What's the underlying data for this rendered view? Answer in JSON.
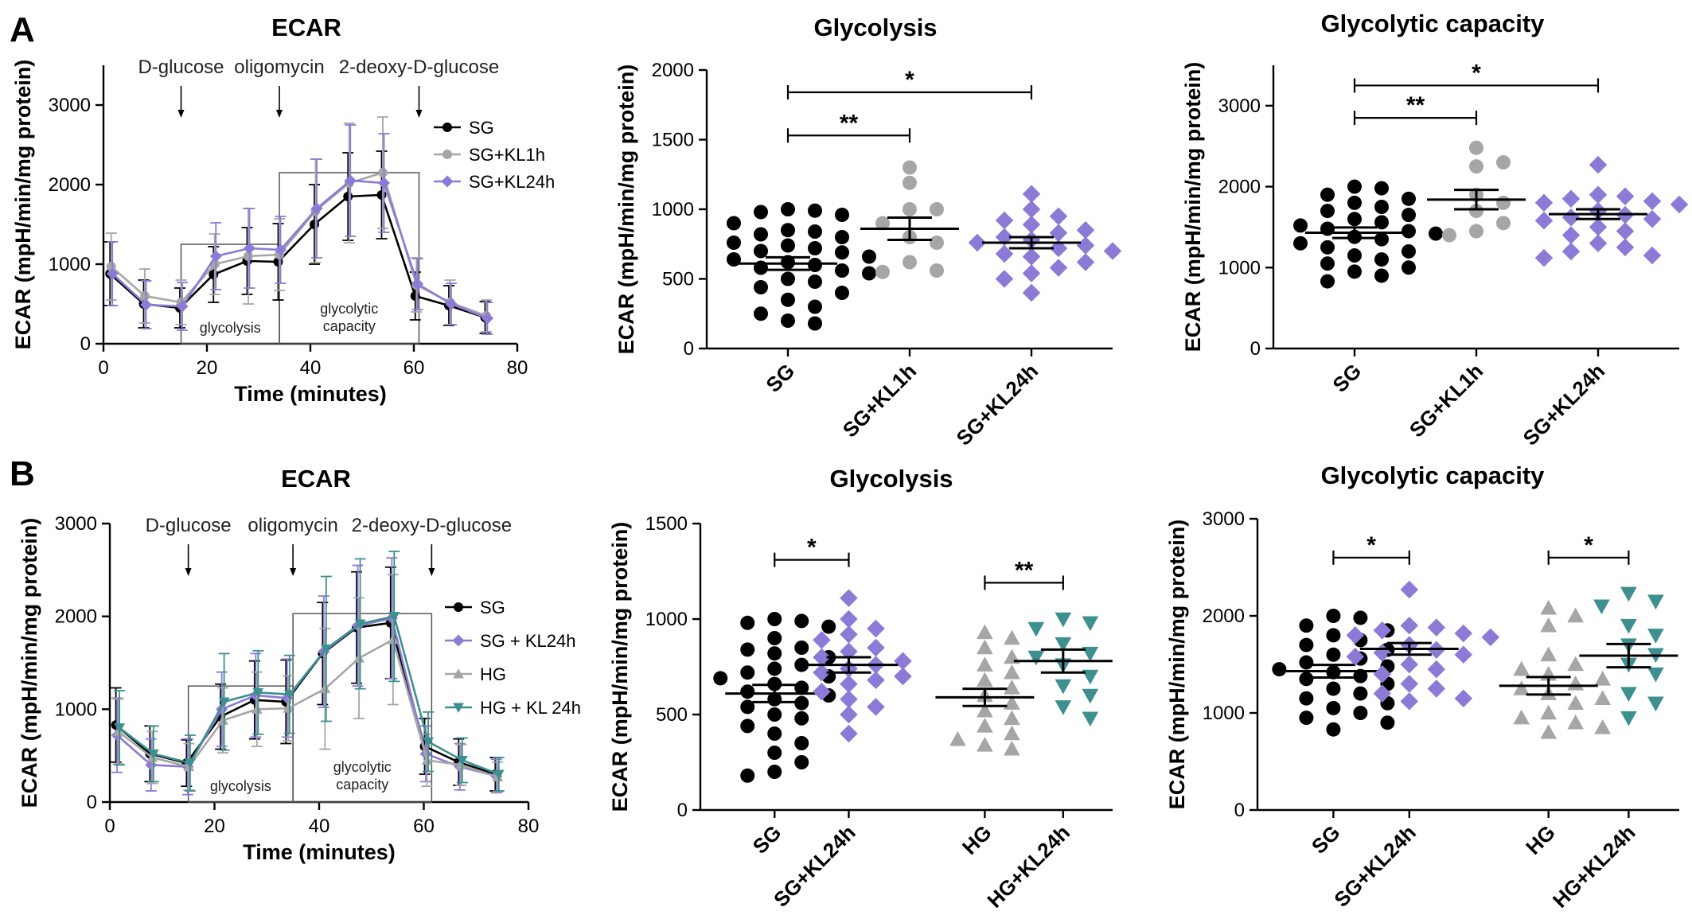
{
  "figure": {
    "panel_labels": [
      "A",
      "B"
    ]
  },
  "colors": {
    "sg": "#000000",
    "kl1h": "#a6a6a6",
    "kl24h": "#8c7ad6",
    "hg": "#a6a6a6",
    "hgkl24h": "#3d8f90",
    "box": "#555555"
  },
  "chart_data": [
    {
      "id": "A1",
      "type": "line",
      "title": "ECAR",
      "xlabel": "Time (minutes)",
      "ylabel": "ECAR (mpH/min/mg protein)",
      "xlim": [
        0,
        80
      ],
      "ylim": [
        0,
        3500
      ],
      "xticks": [
        0,
        20,
        40,
        60,
        80
      ],
      "yticks": [
        0,
        1000,
        2000,
        3000
      ],
      "x": [
        1.5,
        8,
        15,
        21.5,
        28,
        34,
        41,
        47.5,
        54,
        60.5,
        67,
        74
      ],
      "injections": [
        {
          "label": "D-glucose",
          "x": 15
        },
        {
          "label": "oligomycin",
          "x": 34
        },
        {
          "label": "2-deoxy-D-glucose",
          "x": 61
        }
      ],
      "regions": [
        {
          "label": "glycolysis",
          "x0": 15,
          "x1": 34,
          "y": 1250
        },
        {
          "label": "glycolytic capacity",
          "x0": 34,
          "x1": 61,
          "y": 2150
        }
      ],
      "series": [
        {
          "name": "SG",
          "color": "#000000",
          "marker": "circle",
          "values": [
            880,
            500,
            450,
            870,
            1040,
            1030,
            1500,
            1850,
            1870,
            600,
            480,
            330
          ],
          "errors": [
            400,
            300,
            250,
            350,
            420,
            480,
            500,
            550,
            550,
            300,
            250,
            200
          ]
        },
        {
          "name": "SG+KL1h",
          "color": "#a6a6a6",
          "marker": "circle",
          "values": [
            970,
            600,
            520,
            1000,
            1100,
            1120,
            1670,
            2020,
            2150,
            740,
            520,
            350
          ],
          "errors": [
            420,
            340,
            280,
            380,
            600,
            450,
            650,
            750,
            700,
            340,
            280,
            200
          ]
        },
        {
          "name": "SG+KL24h",
          "color": "#8c7ad6",
          "marker": "diamond",
          "values": [
            880,
            490,
            470,
            1100,
            1200,
            1180,
            1700,
            2050,
            2020,
            750,
            500,
            320
          ],
          "errors": [
            400,
            300,
            300,
            420,
            500,
            420,
            620,
            700,
            620,
            320,
            260,
            200
          ]
        }
      ]
    },
    {
      "id": "A2",
      "type": "scatter",
      "title": "Glycolysis",
      "ylabel": "ECAR (mpH/min/mg protein)",
      "ylim": [
        0,
        2000
      ],
      "yticks": [
        0,
        500,
        1000,
        1500,
        2000
      ],
      "categories": [
        "SG",
        "SG+KL1h",
        "SG+KL24h"
      ],
      "groups": [
        {
          "name": "SG",
          "color": "#000000",
          "marker": "circle",
          "mean": 610,
          "sem": 45,
          "values": [
            1000,
            990,
            980,
            960,
            900,
            850,
            840,
            820,
            800,
            760,
            740,
            720,
            700,
            690,
            660,
            640,
            620,
            600,
            580,
            560,
            540,
            500,
            480,
            440,
            400,
            350,
            300,
            250,
            200,
            180
          ]
        },
        {
          "name": "SG+KL1h",
          "color": "#a6a6a6",
          "marker": "circle",
          "mean": 860,
          "sem": 80,
          "values": [
            1300,
            1190,
            1000,
            1000,
            900,
            800,
            760,
            620,
            560,
            550
          ]
        },
        {
          "name": "SG+KL24h",
          "color": "#8c7ad6",
          "marker": "diamond",
          "mean": 760,
          "sem": 40,
          "values": [
            1110,
            1000,
            950,
            920,
            890,
            850,
            830,
            800,
            780,
            760,
            740,
            720,
            700,
            680,
            660,
            620,
            580,
            540,
            500,
            400
          ]
        }
      ],
      "comparisons": [
        {
          "from": 0,
          "to": 1,
          "y": 1530,
          "label": "**"
        },
        {
          "from": 0,
          "to": 2,
          "y": 1840,
          "label": "*"
        }
      ]
    },
    {
      "id": "A3",
      "type": "scatter",
      "title": "Glycolytic capacity",
      "ylabel": "ECAR (mpH/min/mg protein)",
      "ylim": [
        0,
        3500
      ],
      "yticks": [
        0,
        1000,
        2000,
        3000
      ],
      "categories": [
        "SG",
        "SG+KL1h",
        "SG+KL24h"
      ],
      "groups": [
        {
          "name": "SG",
          "color": "#000000",
          "marker": "circle",
          "mean": 1430,
          "sem": 65,
          "values": [
            2000,
            1980,
            1900,
            1850,
            1800,
            1750,
            1700,
            1650,
            1600,
            1560,
            1520,
            1480,
            1450,
            1420,
            1380,
            1350,
            1300,
            1250,
            1200,
            1150,
            1100,
            1050,
            1000,
            950,
            900,
            830
          ]
        },
        {
          "name": "SG+KL1h",
          "color": "#a6a6a6",
          "marker": "circle",
          "mean": 1840,
          "sem": 120,
          "values": [
            2480,
            2300,
            2250,
            1900,
            1800,
            1700,
            1550,
            1450,
            1400
          ]
        },
        {
          "name": "SG+KL24h",
          "color": "#8c7ad6",
          "marker": "diamond",
          "mean": 1660,
          "sem": 60,
          "values": [
            2270,
            1900,
            1880,
            1850,
            1820,
            1800,
            1780,
            1700,
            1650,
            1620,
            1600,
            1580,
            1500,
            1450,
            1400,
            1300,
            1250,
            1200,
            1150,
            1120
          ]
        }
      ],
      "comparisons": [
        {
          "from": 0,
          "to": 1,
          "y": 2850,
          "label": "**"
        },
        {
          "from": 0,
          "to": 2,
          "y": 3250,
          "label": "*"
        }
      ]
    },
    {
      "id": "B1",
      "type": "line",
      "title": "ECAR",
      "xlabel": "Time (minutes)",
      "ylabel": "ECAR (mpH/min/mg protein)",
      "xlim": [
        0,
        80
      ],
      "ylim": [
        0,
        3000
      ],
      "xticks": [
        0,
        20,
        40,
        60,
        80
      ],
      "yticks": [
        0,
        1000,
        2000,
        3000
      ],
      "x": [
        1.5,
        8,
        15,
        21.5,
        28,
        34,
        41,
        47.5,
        54,
        60.5,
        67,
        74
      ],
      "injections": [
        {
          "label": "D-glucose",
          "x": 15
        },
        {
          "label": "oligomycin",
          "x": 35
        },
        {
          "label": "2-deoxy-D-glucose",
          "x": 61.5
        }
      ],
      "regions": [
        {
          "label": "glycolysis",
          "x0": 15,
          "x1": 35,
          "y": 1250
        },
        {
          "label": "glycolytic capacity",
          "x0": 35,
          "x1": 61.5,
          "y": 2030
        }
      ],
      "series": [
        {
          "name": "SG",
          "color": "#000000",
          "marker": "circle",
          "values": [
            830,
            520,
            420,
            920,
            1100,
            1080,
            1600,
            1880,
            1930,
            600,
            430,
            300
          ],
          "errors": [
            400,
            300,
            250,
            350,
            420,
            450,
            550,
            600,
            600,
            300,
            250,
            180
          ]
        },
        {
          "name": "SG + KL24h",
          "color": "#8c7ad6",
          "marker": "diamond",
          "values": [
            720,
            400,
            380,
            1000,
            1150,
            1120,
            1620,
            1900,
            1980,
            520,
            380,
            280
          ],
          "errors": [
            400,
            280,
            300,
            400,
            450,
            420,
            600,
            650,
            650,
            300,
            250,
            180
          ]
        },
        {
          "name": "HG",
          "color": "#a6a6a6",
          "marker": "triangle",
          "values": [
            760,
            480,
            380,
            880,
            1000,
            1010,
            1220,
            1550,
            1750,
            450,
            400,
            270
          ],
          "errors": [
            350,
            280,
            250,
            350,
            400,
            350,
            650,
            650,
            700,
            280,
            220,
            160
          ]
        },
        {
          "name": "HG + KL 24h",
          "color": "#3d8f90",
          "marker": "triangle-down",
          "values": [
            800,
            520,
            420,
            1080,
            1180,
            1160,
            1650,
            1920,
            2000,
            650,
            450,
            300
          ],
          "errors": [
            400,
            300,
            300,
            520,
            450,
            420,
            780,
            700,
            700,
            320,
            240,
            180
          ]
        }
      ]
    },
    {
      "id": "B2",
      "type": "scatter",
      "title": "Glycolysis",
      "ylabel": "ECAR (mpH/min/mg protein)",
      "ylim": [
        0,
        1500
      ],
      "yticks": [
        0,
        500,
        1000,
        1500
      ],
      "categories": [
        "SG",
        "SG+KL24h",
        "HG",
        "HG+KL24h"
      ],
      "groups": [
        {
          "name": "SG",
          "color": "#000000",
          "marker": "circle",
          "mean": 610,
          "sem": 45,
          "values": [
            1000,
            990,
            980,
            960,
            900,
            850,
            840,
            820,
            800,
            760,
            740,
            720,
            700,
            690,
            660,
            640,
            620,
            600,
            580,
            560,
            540,
            500,
            480,
            440,
            400,
            350,
            300,
            250,
            200,
            180
          ]
        },
        {
          "name": "SG+KL24h",
          "color": "#8c7ad6",
          "marker": "diamond",
          "mean": 760,
          "sem": 40,
          "values": [
            1110,
            1000,
            950,
            920,
            890,
            850,
            830,
            800,
            780,
            760,
            740,
            720,
            700,
            680,
            660,
            620,
            580,
            540,
            500,
            400
          ]
        },
        {
          "name": "HG",
          "color": "#a6a6a6",
          "marker": "triangle",
          "mean": 590,
          "sem": 45,
          "values": [
            930,
            900,
            850,
            800,
            760,
            720,
            680,
            640,
            600,
            560,
            520,
            480,
            440,
            400,
            370,
            340,
            320
          ]
        },
        {
          "name": "HG+KL24h",
          "color": "#3d8f90",
          "marker": "triangle-down",
          "mean": 780,
          "sem": 60,
          "values": [
            1000,
            980,
            950,
            870,
            820,
            800,
            760,
            700,
            650,
            600,
            540,
            480
          ]
        }
      ],
      "comparisons": [
        {
          "from": 0,
          "to": 1,
          "y": 1310,
          "label": "*"
        },
        {
          "from": 2,
          "to": 3,
          "y": 1190,
          "label": "**"
        }
      ]
    },
    {
      "id": "B3",
      "type": "scatter",
      "title": "Glycolytic capacity",
      "ylabel": "ECAR (mpH/min/mg protein)",
      "ylim": [
        0,
        3000
      ],
      "yticks": [
        0,
        1000,
        2000,
        3000
      ],
      "categories": [
        "SG",
        "SG+KL24h",
        "HG",
        "HG+KL24h"
      ],
      "groups": [
        {
          "name": "SG",
          "color": "#000000",
          "marker": "circle",
          "mean": 1430,
          "sem": 65,
          "values": [
            2000,
            1980,
            1900,
            1850,
            1800,
            1750,
            1700,
            1650,
            1600,
            1560,
            1520,
            1480,
            1450,
            1420,
            1380,
            1350,
            1300,
            1250,
            1200,
            1150,
            1100,
            1050,
            1000,
            950,
            900,
            830
          ]
        },
        {
          "name": "SG+KL24h",
          "color": "#8c7ad6",
          "marker": "diamond",
          "mean": 1660,
          "sem": 60,
          "values": [
            2270,
            1900,
            1880,
            1850,
            1820,
            1800,
            1780,
            1700,
            1650,
            1620,
            1600,
            1580,
            1500,
            1450,
            1400,
            1300,
            1250,
            1200,
            1150,
            1120
          ]
        },
        {
          "name": "HG",
          "color": "#a6a6a6",
          "marker": "triangle",
          "mean": 1280,
          "sem": 90,
          "values": [
            2080,
            2000,
            1900,
            1600,
            1500,
            1450,
            1400,
            1350,
            1300,
            1250,
            1200,
            1150,
            1100,
            1000,
            950,
            900,
            850,
            800
          ]
        },
        {
          "name": "HG+KL24h",
          "color": "#3d8f90",
          "marker": "triangle-down",
          "mean": 1590,
          "sem": 120,
          "values": [
            2230,
            2150,
            2100,
            1900,
            1800,
            1700,
            1600,
            1500,
            1400,
            1200,
            1100,
            950
          ]
        }
      ],
      "comparisons": [
        {
          "from": 0,
          "to": 1,
          "y": 2600,
          "label": "*"
        },
        {
          "from": 2,
          "to": 3,
          "y": 2600,
          "label": "*"
        }
      ]
    }
  ]
}
